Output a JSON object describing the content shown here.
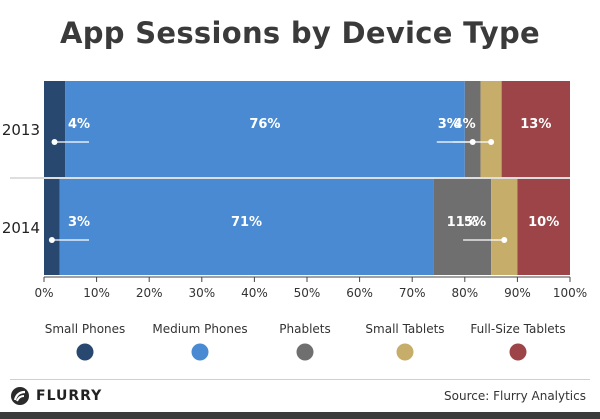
{
  "chart_data": {
    "type": "bar",
    "orientation": "horizontal",
    "stacked": true,
    "title": "App Sessions by Device Type",
    "categories": [
      "2013",
      "2014"
    ],
    "series": [
      {
        "name": "Small Phones",
        "color": "#28486f",
        "values": [
          4,
          3
        ],
        "labels": [
          "4%",
          "3%"
        ]
      },
      {
        "name": "Medium Phones",
        "color": "#4a8ad2",
        "values": [
          76,
          71
        ],
        "labels": [
          "76%",
          "71%"
        ]
      },
      {
        "name": "Phablets",
        "color": "#6f6f6f",
        "values": [
          3,
          11
        ],
        "labels": [
          "3%",
          "11%"
        ]
      },
      {
        "name": "Small Tablets",
        "color": "#c6ad69",
        "values": [
          4,
          5
        ],
        "labels": [
          "4%",
          "5%"
        ]
      },
      {
        "name": "Full-Size Tablets",
        "color": "#9c4448",
        "values": [
          13,
          10
        ],
        "labels": [
          "13%",
          "10%"
        ]
      }
    ],
    "xlim": [
      0,
      100
    ],
    "xticks": [
      "0%",
      "10%",
      "20%",
      "30%",
      "40%",
      "50%",
      "60%",
      "70%",
      "80%",
      "90%",
      "100%"
    ],
    "legend_position": "bottom"
  },
  "footer": {
    "brand": "FLURRY",
    "brand_icon": "flurry-logo-icon",
    "source": "Source: Flurry Analytics"
  }
}
